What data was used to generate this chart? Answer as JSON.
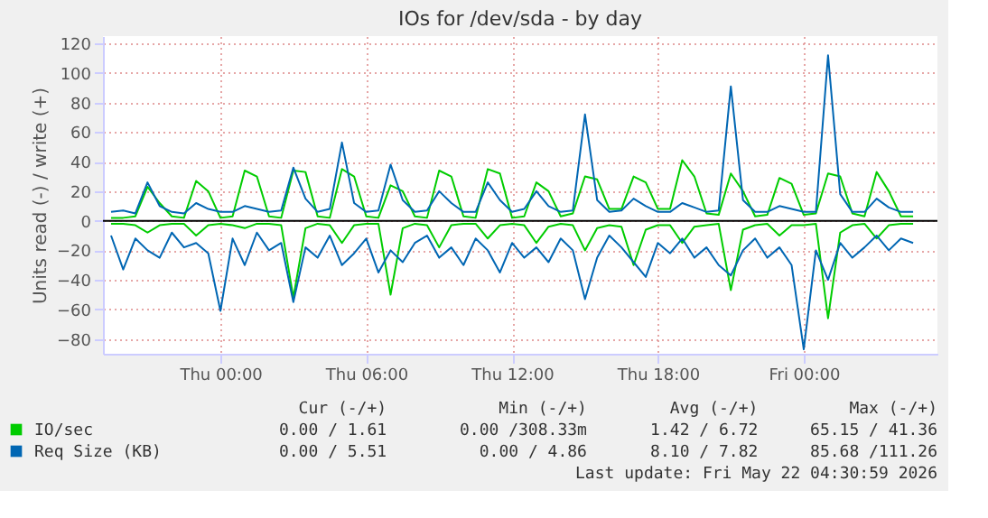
{
  "chart_data": {
    "type": "line",
    "title": "IOs for /dev/sda - by day",
    "ylabel": "Units read (-) / write (+)",
    "x": [
      "2026-05-20T19:30",
      "2026-05-20T20:00",
      "2026-05-20T20:30",
      "2026-05-20T21:00",
      "2026-05-20T21:30",
      "2026-05-20T22:00",
      "2026-05-20T22:30",
      "2026-05-20T23:00",
      "2026-05-20T23:30",
      "2026-05-21T00:00",
      "2026-05-21T00:30",
      "2026-05-21T01:00",
      "2026-05-21T01:30",
      "2026-05-21T02:00",
      "2026-05-21T02:30",
      "2026-05-21T03:00",
      "2026-05-21T03:30",
      "2026-05-21T04:00",
      "2026-05-21T04:30",
      "2026-05-21T05:00",
      "2026-05-21T05:30",
      "2026-05-21T06:00",
      "2026-05-21T06:30",
      "2026-05-21T07:00",
      "2026-05-21T07:30",
      "2026-05-21T08:00",
      "2026-05-21T08:30",
      "2026-05-21T09:00",
      "2026-05-21T09:30",
      "2026-05-21T10:00",
      "2026-05-21T10:30",
      "2026-05-21T11:00",
      "2026-05-21T11:30",
      "2026-05-21T12:00",
      "2026-05-21T12:30",
      "2026-05-21T13:00",
      "2026-05-21T13:30",
      "2026-05-21T14:00",
      "2026-05-21T14:30",
      "2026-05-21T15:00",
      "2026-05-21T15:30",
      "2026-05-21T16:00",
      "2026-05-21T16:30",
      "2026-05-21T17:00",
      "2026-05-21T17:30",
      "2026-05-21T18:00",
      "2026-05-21T18:30",
      "2026-05-21T19:00",
      "2026-05-21T19:30",
      "2026-05-21T20:00",
      "2026-05-21T20:30",
      "2026-05-21T21:00",
      "2026-05-21T21:30",
      "2026-05-21T22:00",
      "2026-05-21T22:30",
      "2026-05-21T23:00",
      "2026-05-21T23:30",
      "2026-05-22T00:00",
      "2026-05-22T00:30",
      "2026-05-22T01:00",
      "2026-05-22T01:30",
      "2026-05-22T02:00",
      "2026-05-22T02:30",
      "2026-05-22T03:00",
      "2026-05-22T03:30",
      "2026-05-22T04:00",
      "2026-05-22T04:30"
    ],
    "series": [
      {
        "name": "IO/sec",
        "color": "#00cc00",
        "values": [
          2,
          2,
          3,
          23,
          12,
          3,
          2,
          27,
          20,
          2,
          3,
          34,
          30,
          3,
          2,
          34,
          33,
          3,
          2,
          35,
          30,
          3,
          2,
          24,
          20,
          3,
          2,
          34,
          30,
          3,
          2,
          35,
          32,
          2,
          3,
          26,
          20,
          3,
          5,
          30,
          28,
          8,
          8,
          30,
          26,
          8,
          8,
          41,
          30,
          5,
          4,
          32,
          20,
          3,
          4,
          29,
          25,
          4,
          5,
          32,
          30,
          5,
          3,
          33,
          20,
          3,
          3
        ]
      },
      {
        "color": "#00cc00",
        "values": [
          -2,
          -2,
          -3,
          -8,
          -3,
          -2,
          -2,
          -10,
          -3,
          -2,
          -3,
          -5,
          -2,
          -2,
          -3,
          -52,
          -5,
          -2,
          -3,
          -15,
          -3,
          -2,
          -2,
          -50,
          -5,
          -2,
          -3,
          -18,
          -3,
          -2,
          -2,
          -12,
          -3,
          -2,
          -3,
          -15,
          -4,
          -2,
          -3,
          -20,
          -5,
          -3,
          -4,
          -30,
          -6,
          -3,
          -3,
          -15,
          -4,
          -3,
          -2,
          -47,
          -6,
          -3,
          -2,
          -10,
          -3,
          -3,
          -2,
          -66,
          -8,
          -3,
          -2,
          -12,
          -3,
          -2,
          -2
        ]
      },
      {
        "name": "Req Size (KB)",
        "color": "#0066b3",
        "values": [
          6,
          7,
          5,
          26,
          10,
          6,
          5,
          12,
          8,
          6,
          6,
          10,
          8,
          6,
          7,
          36,
          15,
          6,
          8,
          53,
          12,
          6,
          7,
          38,
          14,
          6,
          7,
          20,
          12,
          6,
          6,
          26,
          14,
          6,
          8,
          20,
          10,
          6,
          7,
          72,
          14,
          6,
          7,
          15,
          10,
          6,
          6,
          12,
          9,
          6,
          7,
          91,
          14,
          6,
          6,
          10,
          8,
          6,
          6,
          112,
          18,
          6,
          6,
          15,
          9,
          6,
          6
        ]
      },
      {
        "color": "#0066b3",
        "values": [
          -10,
          -33,
          -12,
          -20,
          -25,
          -8,
          -18,
          -15,
          -22,
          -61,
          -12,
          -30,
          -8,
          -20,
          -15,
          -55,
          -18,
          -25,
          -10,
          -30,
          -22,
          -12,
          -35,
          -20,
          -28,
          -15,
          -10,
          -25,
          -18,
          -30,
          -12,
          -20,
          -35,
          -15,
          -25,
          -18,
          -28,
          -12,
          -20,
          -53,
          -25,
          -10,
          -18,
          -28,
          -38,
          -15,
          -22,
          -12,
          -25,
          -18,
          -30,
          -37,
          -20,
          -12,
          -25,
          -18,
          -30,
          -87,
          -20,
          -40,
          -15,
          -25,
          -18,
          -10,
          -20,
          -12,
          -15
        ]
      }
    ],
    "xlim": [
      "2026-05-20T19:10",
      "2026-05-22T05:30"
    ],
    "xticks": [
      {
        "value": "2026-05-21T00:00",
        "label": "Thu 00:00"
      },
      {
        "value": "2026-05-21T06:00",
        "label": "Thu 06:00"
      },
      {
        "value": "2026-05-21T12:00",
        "label": "Thu 12:00"
      },
      {
        "value": "2026-05-21T18:00",
        "label": "Thu 18:00"
      },
      {
        "value": "2026-05-22T00:00",
        "label": "Fri 00:00"
      }
    ],
    "ylim": [
      -90,
      125
    ],
    "yticks": [
      -80,
      -60,
      -40,
      -20,
      0,
      20,
      40,
      60,
      80,
      100,
      120
    ],
    "ref_lines": [
      {
        "axis": "y",
        "value": 0,
        "color": "#000000"
      }
    ],
    "grid": true,
    "legend": "bottom",
    "annotations": [
      "Cur (-/+)",
      "Min (-/+)",
      "Avg (-/+)",
      "Max (-/+)",
      "0.00 /  1.61",
      "0.00 /308.33m",
      "1.42 /  6.72",
      "65.15 / 41.36",
      "0.00 /  5.51",
      "0.00 /  4.86",
      "8.10 /  7.82",
      "85.68 /111.26",
      "Last update: Fri May 22 04:30:59 2026"
    ]
  }
}
